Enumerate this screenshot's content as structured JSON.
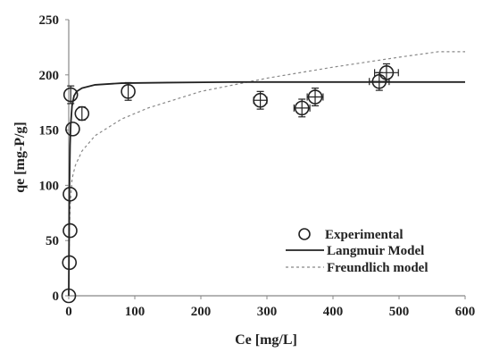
{
  "chart_data": {
    "type": "scatter",
    "xlabel": "Ce [mg/L]",
    "ylabel": "qe [mg-P/g]",
    "xlim": [
      0,
      600
    ],
    "ylim": [
      0,
      250
    ],
    "x_ticks": [
      0,
      100,
      200,
      300,
      400,
      500,
      600
    ],
    "y_ticks": [
      0,
      50,
      100,
      150,
      200,
      250
    ],
    "grid": false,
    "legend_position": "bottom-right",
    "series": [
      {
        "name": "Experimental",
        "kind": "markers",
        "marker": "open-circle",
        "points": [
          {
            "x": 0,
            "y": 0,
            "xerr": 0,
            "yerr": 0
          },
          {
            "x": 1,
            "y": 30,
            "xerr": 0,
            "yerr": 0
          },
          {
            "x": 2,
            "y": 59,
            "xerr": 0,
            "yerr": 0
          },
          {
            "x": 2,
            "y": 92,
            "xerr": 0,
            "yerr": 0
          },
          {
            "x": 6,
            "y": 151,
            "xerr": 0,
            "yerr": 0
          },
          {
            "x": 3,
            "y": 182,
            "xerr": 0,
            "yerr": 8
          },
          {
            "x": 20,
            "y": 165,
            "xerr": 0,
            "yerr": 6
          },
          {
            "x": 90,
            "y": 185,
            "xerr": 0,
            "yerr": 8
          },
          {
            "x": 290,
            "y": 177,
            "xerr": 10,
            "yerr": 8
          },
          {
            "x": 353,
            "y": 170,
            "xerr": 12,
            "yerr": 8
          },
          {
            "x": 373,
            "y": 180,
            "xerr": 12,
            "yerr": 8
          },
          {
            "x": 470,
            "y": 194,
            "xerr": 15,
            "yerr": 8
          },
          {
            "x": 481,
            "y": 202,
            "xerr": 18,
            "yerr": 8
          }
        ]
      },
      {
        "name": "Langmuir Model",
        "kind": "line",
        "style": "solid",
        "x": [
          0,
          1,
          2,
          3,
          5,
          8,
          12,
          20,
          40,
          80,
          150,
          250,
          350,
          450,
          550,
          600
        ],
        "y": [
          0,
          95,
          136,
          155,
          172,
          181,
          185,
          188,
          191,
          192.5,
          193,
          193.5,
          193.5,
          193.5,
          193.5,
          193.5
        ]
      },
      {
        "name": "Freundlich model",
        "kind": "line",
        "style": "dashed",
        "x": [
          0.3,
          1,
          2,
          5,
          10,
          20,
          40,
          80,
          120,
          200,
          300,
          400,
          500,
          560,
          600
        ],
        "y": [
          30,
          58,
          80,
          106,
          118,
          131,
          145,
          160,
          170,
          185,
          197,
          207,
          216,
          221,
          221
        ]
      }
    ]
  },
  "colors": {
    "axis": "#888888",
    "data": "#222222",
    "freundlich": "#888888"
  }
}
